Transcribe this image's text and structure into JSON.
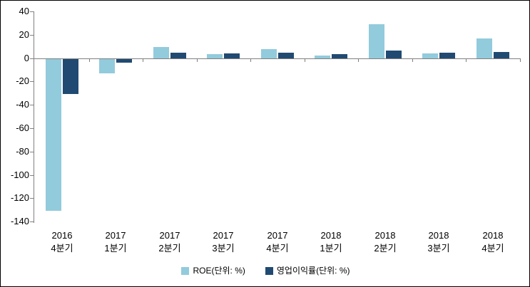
{
  "window": {
    "background": "#FFFFFF",
    "border_color": "#000000"
  },
  "chart_data": {
    "type": "bar",
    "title": "",
    "xlabel": "",
    "ylabel": "",
    "categories": [
      {
        "line1": "2016",
        "line2": "4분기"
      },
      {
        "line1": "2017",
        "line2": "1분기"
      },
      {
        "line1": "2017",
        "line2": "2분기"
      },
      {
        "line1": "2017",
        "line2": "3분기"
      },
      {
        "line1": "2017",
        "line2": "4분기"
      },
      {
        "line1": "2018",
        "line2": "1분기"
      },
      {
        "line1": "2018",
        "line2": "2분기"
      },
      {
        "line1": "2018",
        "line2": "3분기"
      },
      {
        "line1": "2018",
        "line2": "4분기"
      }
    ],
    "series": [
      {
        "name": "ROE(단위: %)",
        "color": "#92CBDC",
        "values": [
          -130,
          -12,
          10,
          3.5,
          8,
          2.5,
          29,
          4,
          17
        ]
      },
      {
        "name": "영업이익률(단위: %)",
        "color": "#204A72",
        "values": [
          -30,
          -3,
          5,
          4,
          5,
          3.5,
          7,
          5,
          5.5
        ]
      }
    ],
    "ylim": [
      -140,
      40
    ],
    "yticks": [
      40,
      20,
      0,
      -20,
      -40,
      -60,
      -80,
      -100,
      -120,
      -140
    ],
    "grid": false,
    "legend_position": "bottom",
    "axis_color": "#808080",
    "text_color": "#000000"
  }
}
